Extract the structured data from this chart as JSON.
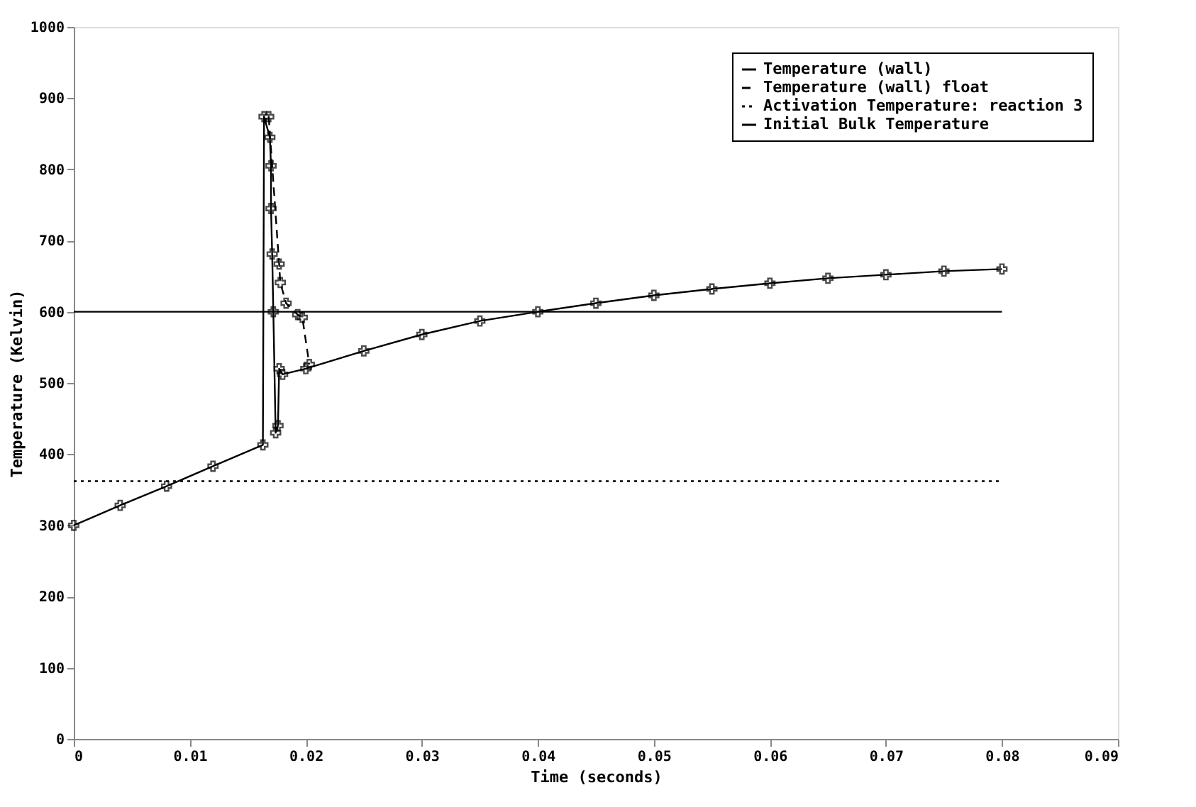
{
  "chart_data": {
    "type": "line",
    "xlabel": "Time (seconds)",
    "ylabel": "Temperature (Kelvin)",
    "xlim": [
      0,
      0.09
    ],
    "ylim": [
      0,
      1000
    ],
    "xticks": [
      0,
      0.01,
      0.02,
      0.03,
      0.04,
      0.05,
      0.06,
      0.07,
      0.08,
      0.09
    ],
    "yticks": [
      0,
      100,
      200,
      300,
      400,
      500,
      600,
      700,
      800,
      900,
      1000
    ],
    "grid": false,
    "legend": "top right",
    "series": [
      {
        "name": "Temperature (wall)",
        "color": "#000000",
        "marker": "cross",
        "line_style": "solid",
        "x": [
          0,
          0.004,
          0.008,
          0.012,
          0.0163,
          0.0164,
          0.0169,
          0.017,
          0.017,
          0.0171,
          0.0172,
          0.0174,
          0.0176,
          0.0177,
          0.018,
          0.02,
          0.025,
          0.03,
          0.035,
          0.04,
          0.045,
          0.05,
          0.055,
          0.06,
          0.065,
          0.07,
          0.075,
          0.08
        ],
        "values": [
          300,
          328,
          355,
          383,
          413,
          874,
          845,
          805,
          745,
          681,
          600,
          430,
          440,
          520,
          512,
          520,
          545,
          568,
          587,
          600,
          612,
          623,
          632,
          640,
          647,
          652,
          657,
          660
        ]
      },
      {
        "name": "Temperature (wall) float",
        "color": "#000000",
        "marker": "cross",
        "line_style": "dashed",
        "x": [
          0.0168,
          0.0177,
          0.0178,
          0.0183,
          0.0193,
          0.0197,
          0.0203
        ],
        "values": [
          874,
          667,
          641,
          612,
          596,
          592,
          526
        ]
      },
      {
        "name": "Activation Temperature: reaction 3",
        "color": "#000000",
        "marker": "none",
        "line_style": "dotted",
        "x": [
          0,
          0.08
        ],
        "values": [
          362,
          362
        ]
      },
      {
        "name": "Initial Bulk Temperature",
        "color": "#000000",
        "marker": "none",
        "line_style": "solid",
        "x": [
          0,
          0.08
        ],
        "values": [
          600,
          600
        ]
      }
    ]
  }
}
